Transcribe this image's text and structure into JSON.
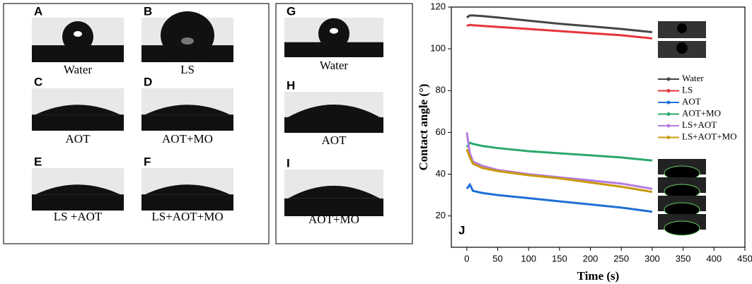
{
  "panels": [
    {
      "letter": "A",
      "caption": "Water"
    },
    {
      "letter": "B",
      "caption": "LS"
    },
    {
      "letter": "C",
      "caption": "AOT"
    },
    {
      "letter": "D",
      "caption": "AOT+MO"
    },
    {
      "letter": "E",
      "caption": "LS +AOT"
    },
    {
      "letter": "F",
      "caption": "LS+AOT+MO"
    },
    {
      "letter": "G",
      "caption": "Water"
    },
    {
      "letter": "H",
      "caption": "AOT"
    },
    {
      "letter": "I",
      "caption": "AOT+MO"
    }
  ],
  "chart_data": {
    "type": "line",
    "panel_label": "J",
    "x_label": "Time (s)",
    "y_label": "Contact angle (°)",
    "x": [
      0,
      5,
      10,
      25,
      50,
      100,
      150,
      200,
      250,
      300
    ],
    "series": [
      {
        "name": "Water",
        "color": "#454545",
        "values": [
          115,
          116,
          116,
          115.7,
          115,
          113.5,
          112,
          110.8,
          109.5,
          108
        ]
      },
      {
        "name": "LS",
        "color": "#e8343a",
        "values": [
          111,
          111.5,
          111.3,
          111,
          110.5,
          109.5,
          108.5,
          107.5,
          106.5,
          105
        ]
      },
      {
        "name": "AOT",
        "color": "#1f6fd6",
        "values": [
          33,
          35,
          32,
          31,
          30,
          28.5,
          27,
          25.5,
          24,
          22
        ]
      },
      {
        "name": "AOT+MO",
        "color": "#2aa86a",
        "values": [
          53,
          55,
          54.5,
          53.5,
          52.5,
          51,
          50,
          49,
          48,
          46.5
        ]
      },
      {
        "name": "LS+AOT",
        "color": "#b57be0",
        "values": [
          60,
          50,
          46,
          44,
          42,
          40,
          38.5,
          37,
          35.5,
          33
        ]
      },
      {
        "name": "LS+AOT+MO",
        "color": "#c99a0c",
        "values": [
          52,
          48,
          45,
          43,
          41.5,
          39.5,
          38,
          36,
          34,
          31.5
        ]
      }
    ],
    "xlim": [
      -25,
      450
    ],
    "xticks": [
      0,
      50,
      100,
      150,
      200,
      250,
      300,
      350,
      400,
      450
    ],
    "ylim": [
      5,
      120
    ],
    "yticks": [
      20,
      40,
      60,
      80,
      100,
      120
    ],
    "legend": "right"
  }
}
